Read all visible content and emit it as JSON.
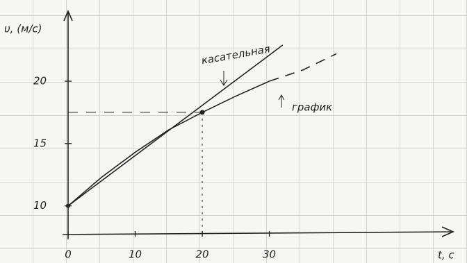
{
  "chart_data": {
    "type": "line",
    "y_label": "υ, (м/с)",
    "x_label": "t, c",
    "xlim": [
      0,
      57.5
    ],
    "ylim": [
      7.7,
      25.4
    ],
    "xticks": [
      0,
      10,
      20,
      30
    ],
    "yticks": [
      10,
      15,
      20
    ],
    "series": [
      {
        "x": [
          0,
          5,
          10,
          15,
          20,
          25,
          30
        ],
        "values": [
          10,
          12.3,
          14.3,
          16.1,
          17.5,
          18.8,
          20
        ],
        "color": "#222222",
        "dash": false
      },
      {
        "x": [
          30,
          35,
          40
        ],
        "values": [
          20,
          20.9,
          22.2
        ],
        "color": "#222222",
        "dash": true
      },
      {
        "x": [
          0,
          32
        ],
        "values": [
          10,
          22.9
        ],
        "color": "#222222",
        "dash": false
      }
    ],
    "point": {
      "x": 20,
      "y": 17.5
    },
    "annotations": [
      "касательная",
      "график"
    ]
  }
}
